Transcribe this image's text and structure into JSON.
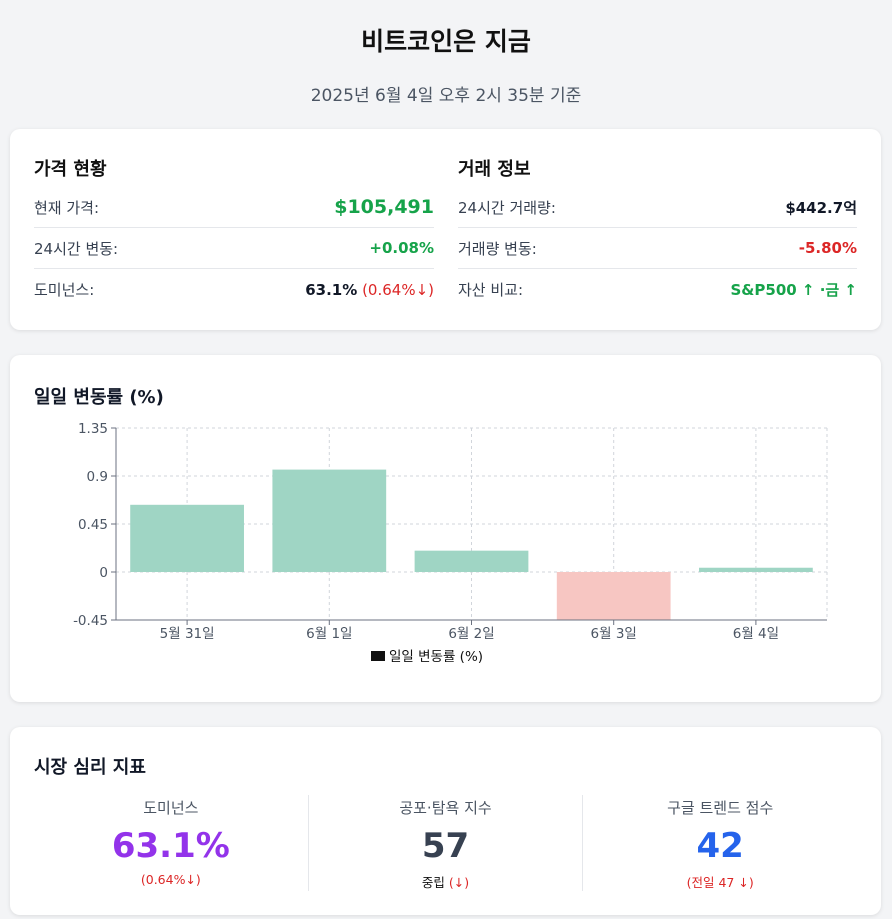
{
  "header": {
    "title": "비트코인은 지금",
    "subtitle": "2025년 6월 4일 오후 2시 35분 기준"
  },
  "price_status": {
    "title": "가격 현황",
    "rows": [
      {
        "label": "현재 가격:",
        "value": "$105,491"
      },
      {
        "label": "24시간 변동:",
        "value": "+0.08%"
      },
      {
        "label": "도미넌스:",
        "value": "63.1%",
        "change": "(0.64%↓)"
      }
    ]
  },
  "trade_info": {
    "title": "거래 정보",
    "rows": [
      {
        "label": "24시간 거래량:",
        "value": "$442.7억"
      },
      {
        "label": "거래량 변동:",
        "value": "-5.80%"
      },
      {
        "label": "자산 비교:",
        "value": "S&P500 ↑ ·금 ↑"
      }
    ]
  },
  "chart_section": {
    "title": "일일 변동률 (%)"
  },
  "chart_data": {
    "type": "bar",
    "categories": [
      "5월 31일",
      "6월 1일",
      "6월 2일",
      "6월 3일",
      "6월 4일"
    ],
    "series": [
      {
        "name": "일일 변동률 (%)",
        "values": [
          0.63,
          0.96,
          0.2,
          -0.45,
          0.04
        ]
      }
    ],
    "yticks": [
      "1.35",
      "0.9",
      "0.45",
      "0",
      "-0.45"
    ],
    "ylim": [
      -0.45,
      1.35
    ],
    "grid": true,
    "legend": "bottom",
    "colors": {
      "positive": "#9fd5c4",
      "negative": "#f7c6c2"
    }
  },
  "sentiment": {
    "title": "시장 심리 지표",
    "items": [
      {
        "label": "도미넌스",
        "value": "63.1%",
        "sub": "(0.64%↓)"
      },
      {
        "label": "공포·탐욕 지수",
        "value": "57",
        "sub": "중립",
        "sub_arrow": "(↓)"
      },
      {
        "label": "구글 트렌드 점수",
        "value": "42",
        "sub": "(전일 47 ↓)"
      }
    ]
  }
}
